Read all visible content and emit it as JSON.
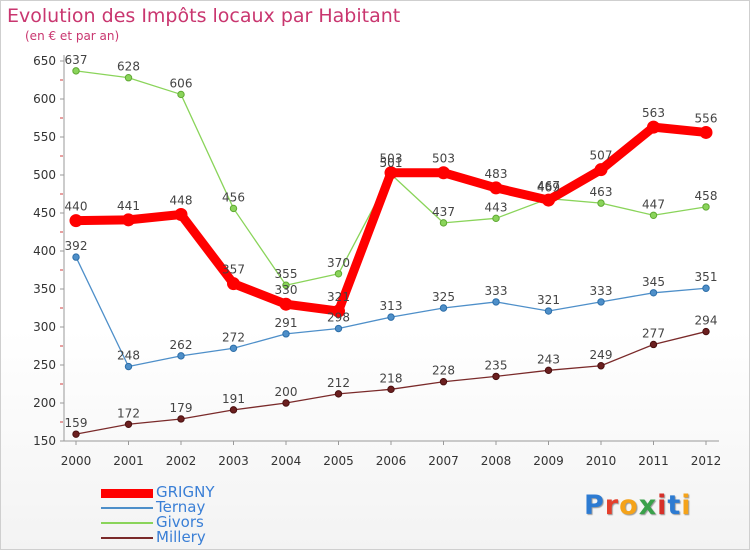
{
  "title": "Evolution des Impôts locaux par Habitant",
  "subtitle": "(en € et par an)",
  "logo": {
    "text": "Proxiti",
    "letter_colors": [
      "#2d7bd2",
      "#e43f2c",
      "#f5a31a",
      "#3aa14a",
      "#d6302a",
      "#2d7bd2",
      "#f5a31a"
    ]
  },
  "chart_data": {
    "type": "line",
    "x": [
      "2000",
      "2001",
      "2002",
      "2003",
      "2004",
      "2005",
      "2006",
      "2007",
      "2008",
      "2009",
      "2010",
      "2011",
      "2012"
    ],
    "ylim": [
      150,
      650
    ],
    "yticks": [
      150,
      200,
      250,
      300,
      350,
      400,
      450,
      500,
      550,
      600,
      650
    ],
    "grid": false,
    "legend_position": "bottom-left",
    "series": [
      {
        "name": "Millery",
        "color": "#7a2a2a",
        "values": [
          159,
          172,
          179,
          191,
          200,
          212,
          218,
          228,
          235,
          243,
          249,
          277,
          294
        ]
      },
      {
        "name": "Ternay",
        "color": "#4e8fc9",
        "values": [
          392,
          248,
          262,
          272,
          291,
          298,
          313,
          325,
          333,
          321,
          333,
          345,
          351
        ]
      },
      {
        "name": "Givors",
        "color": "#8ad45a",
        "values": [
          637,
          628,
          606,
          456,
          355,
          370,
          501,
          437,
          443,
          469,
          463,
          447,
          458
        ]
      },
      {
        "name": "GRIGNY",
        "color": "#ff0000",
        "values": [
          440,
          441,
          448,
          357,
          330,
          321,
          503,
          503,
          483,
          467,
          507,
          563,
          556
        ]
      }
    ],
    "legend_order": [
      "GRIGNY",
      "Ternay",
      "Givors",
      "Millery"
    ]
  }
}
